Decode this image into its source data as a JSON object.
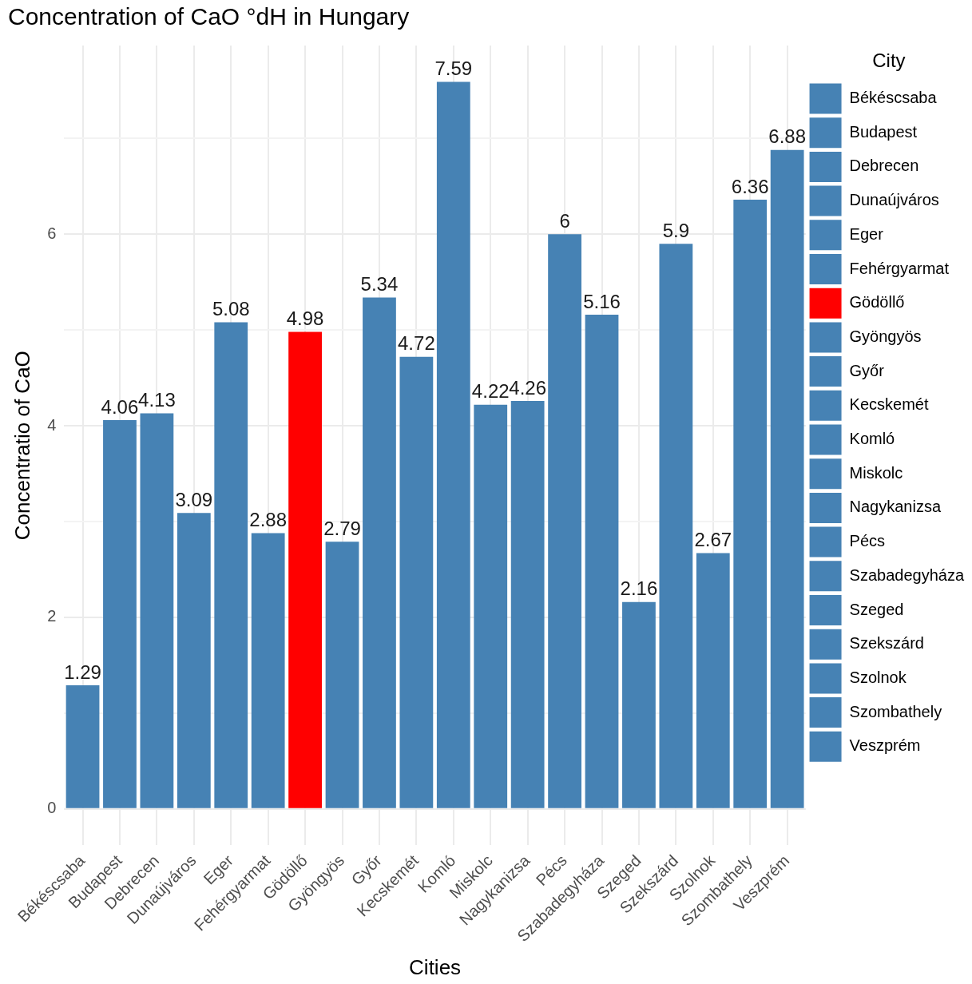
{
  "chart_data": {
    "type": "bar",
    "title": "Concentration of CaO °dH in Hungary",
    "xlabel": "Cities",
    "ylabel": "Concentratio of CaO",
    "legend_title": "City",
    "categories": [
      "Békéscsaba",
      "Budapest",
      "Debrecen",
      "Dunaújváros",
      "Eger",
      "Fehérgyarmat",
      "Gödöllő",
      "Gyöngyös",
      "Győr",
      "Kecskemét",
      "Komló",
      "Miskolc",
      "Nagykanizsa",
      "Pécs",
      "Szabadegyháza",
      "Szeged",
      "Szekszárd",
      "Szolnok",
      "Szombathely",
      "Veszprém"
    ],
    "series": [
      {
        "name": "Békéscsaba",
        "color": "#4682b4",
        "values": [
          1.29,
          null,
          null,
          null,
          null,
          null,
          null,
          null,
          null,
          null,
          null,
          null,
          null,
          null,
          null,
          null,
          null,
          null,
          null,
          null
        ]
      },
      {
        "name": "Budapest",
        "color": "#4682b4",
        "values": [
          null,
          4.06,
          null,
          null,
          null,
          null,
          null,
          null,
          null,
          null,
          null,
          null,
          null,
          null,
          null,
          null,
          null,
          null,
          null,
          null
        ]
      },
      {
        "name": "Debrecen",
        "color": "#4682b4",
        "values": [
          null,
          null,
          4.13,
          null,
          null,
          null,
          null,
          null,
          null,
          null,
          null,
          null,
          null,
          null,
          null,
          null,
          null,
          null,
          null,
          null
        ]
      },
      {
        "name": "Dunaújváros",
        "color": "#4682b4",
        "values": [
          null,
          null,
          null,
          3.09,
          null,
          null,
          null,
          null,
          null,
          null,
          null,
          null,
          null,
          null,
          null,
          null,
          null,
          null,
          null,
          null
        ]
      },
      {
        "name": "Eger",
        "color": "#4682b4",
        "values": [
          null,
          null,
          null,
          null,
          5.08,
          null,
          null,
          null,
          null,
          null,
          null,
          null,
          null,
          null,
          null,
          null,
          null,
          null,
          null,
          null
        ]
      },
      {
        "name": "Fehérgyarmat",
        "color": "#4682b4",
        "values": [
          null,
          null,
          null,
          null,
          null,
          2.88,
          null,
          null,
          null,
          null,
          null,
          null,
          null,
          null,
          null,
          null,
          null,
          null,
          null,
          null
        ]
      },
      {
        "name": "Gödöllő",
        "color": "#ff0000",
        "values": [
          null,
          null,
          null,
          null,
          null,
          null,
          4.98,
          null,
          null,
          null,
          null,
          null,
          null,
          null,
          null,
          null,
          null,
          null,
          null,
          null
        ]
      },
      {
        "name": "Gyöngyös",
        "color": "#4682b4",
        "values": [
          null,
          null,
          null,
          null,
          null,
          null,
          null,
          2.79,
          null,
          null,
          null,
          null,
          null,
          null,
          null,
          null,
          null,
          null,
          null,
          null
        ]
      },
      {
        "name": "Győr",
        "color": "#4682b4",
        "values": [
          null,
          null,
          null,
          null,
          null,
          null,
          null,
          null,
          5.34,
          null,
          null,
          null,
          null,
          null,
          null,
          null,
          null,
          null,
          null,
          null
        ]
      },
      {
        "name": "Kecskemét",
        "color": "#4682b4",
        "values": [
          null,
          null,
          null,
          null,
          null,
          null,
          null,
          null,
          null,
          4.72,
          null,
          null,
          null,
          null,
          null,
          null,
          null,
          null,
          null,
          null
        ]
      },
      {
        "name": "Komló",
        "color": "#4682b4",
        "values": [
          null,
          null,
          null,
          null,
          null,
          null,
          null,
          null,
          null,
          null,
          7.59,
          null,
          null,
          null,
          null,
          null,
          null,
          null,
          null,
          null
        ]
      },
      {
        "name": "Miskolc",
        "color": "#4682b4",
        "values": [
          null,
          null,
          null,
          null,
          null,
          null,
          null,
          null,
          null,
          null,
          null,
          4.22,
          null,
          null,
          null,
          null,
          null,
          null,
          null,
          null
        ]
      },
      {
        "name": "Nagykanizsa",
        "color": "#4682b4",
        "values": [
          null,
          null,
          null,
          null,
          null,
          null,
          null,
          null,
          null,
          null,
          null,
          null,
          4.26,
          null,
          null,
          null,
          null,
          null,
          null,
          null
        ]
      },
      {
        "name": "Pécs",
        "color": "#4682b4",
        "values": [
          null,
          null,
          null,
          null,
          null,
          null,
          null,
          null,
          null,
          null,
          null,
          null,
          null,
          6,
          null,
          null,
          null,
          null,
          null,
          null
        ]
      },
      {
        "name": "Szabadegyháza",
        "color": "#4682b4",
        "values": [
          null,
          null,
          null,
          null,
          null,
          null,
          null,
          null,
          null,
          null,
          null,
          null,
          null,
          null,
          5.16,
          null,
          null,
          null,
          null,
          null
        ]
      },
      {
        "name": "Szeged",
        "color": "#4682b4",
        "values": [
          null,
          null,
          null,
          null,
          null,
          null,
          null,
          null,
          null,
          null,
          null,
          null,
          null,
          null,
          null,
          2.16,
          null,
          null,
          null,
          null
        ]
      },
      {
        "name": "Szekszárd",
        "color": "#4682b4",
        "values": [
          null,
          null,
          null,
          null,
          null,
          null,
          null,
          null,
          null,
          null,
          null,
          null,
          null,
          null,
          null,
          null,
          5.9,
          null,
          null,
          null
        ]
      },
      {
        "name": "Szolnok",
        "color": "#4682b4",
        "values": [
          null,
          null,
          null,
          null,
          null,
          null,
          null,
          null,
          null,
          null,
          null,
          null,
          null,
          null,
          null,
          null,
          null,
          2.67,
          null,
          null
        ]
      },
      {
        "name": "Szombathely",
        "color": "#4682b4",
        "values": [
          null,
          null,
          null,
          null,
          null,
          null,
          null,
          null,
          null,
          null,
          null,
          null,
          null,
          null,
          null,
          null,
          null,
          null,
          6.36,
          null
        ]
      },
      {
        "name": "Veszprém",
        "color": "#4682b4",
        "values": [
          null,
          null,
          null,
          null,
          null,
          null,
          null,
          null,
          null,
          null,
          null,
          null,
          null,
          null,
          null,
          null,
          null,
          null,
          null,
          6.88
        ]
      }
    ],
    "ylim": [
      -0.38,
      7.97
    ],
    "yticks": [
      0,
      {
        "value": 1,
        "label": null
      },
      2,
      {
        "value": 3,
        "label": null
      },
      4,
      {
        "value": 5,
        "label": null
      },
      6,
      {
        "value": 7,
        "label": null
      }
    ],
    "grid": true,
    "legend": "right",
    "data_labels": true
  }
}
